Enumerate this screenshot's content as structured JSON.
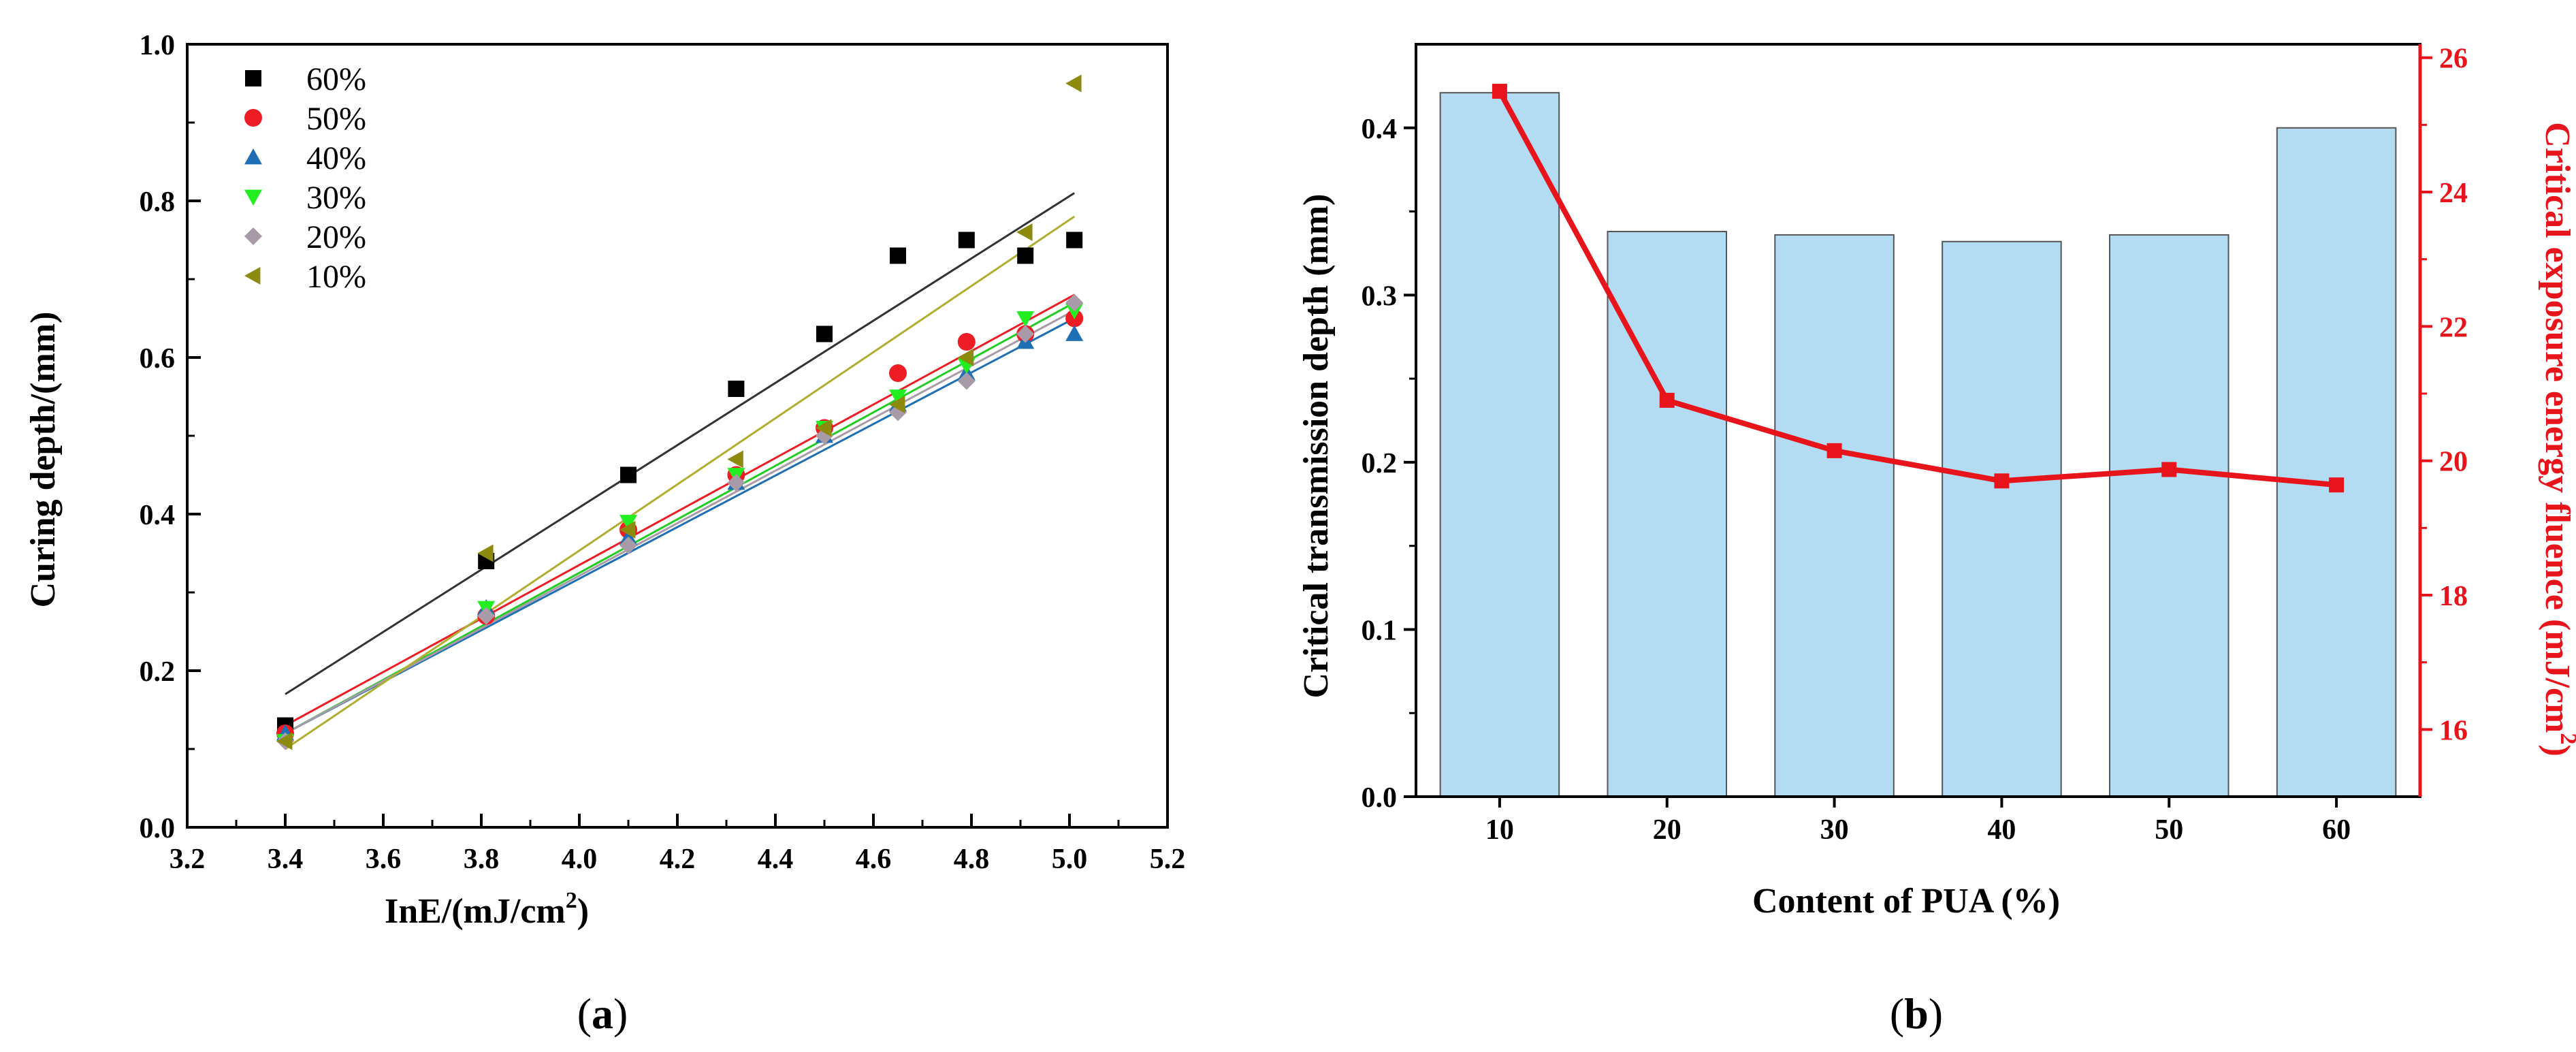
{
  "chart_data": [
    {
      "panel": "a",
      "panel_label": "(a)",
      "type": "scatter",
      "xlabel": "InE/(mJ/cm",
      "xlabel_superscript": "2",
      "xlabel_close": ")",
      "ylabel": "Curing depth/(mm)",
      "xlim": [
        3.2,
        5.2
      ],
      "ylim": [
        0.0,
        1.0
      ],
      "xticks": [
        3.2,
        3.4,
        3.6,
        3.8,
        4.0,
        4.2,
        4.4,
        4.6,
        4.8,
        5.0,
        5.2
      ],
      "xtick_labels": [
        "3.2",
        "3.4",
        "3.6",
        "3.8",
        "4.0",
        "4.2",
        "4.4",
        "4.6",
        "4.8",
        "5.0",
        "5.2"
      ],
      "yticks": [
        0.0,
        0.2,
        0.4,
        0.6,
        0.8,
        1.0
      ],
      "ytick_labels": [
        "0.0",
        "0.2",
        "0.4",
        "0.6",
        "0.8",
        "1.0"
      ],
      "legend_position": "top-left",
      "x": [
        3.4,
        3.81,
        4.1,
        4.32,
        4.5,
        4.65,
        4.79,
        4.91,
        5.01
      ],
      "series": [
        {
          "name": "60%",
          "marker": "square",
          "color": "#000000",
          "line_color": "#333333",
          "values": [
            0.13,
            0.34,
            0.45,
            0.56,
            0.63,
            0.73,
            0.75,
            0.73,
            0.75
          ],
          "fit": [
            0.17,
            0.81
          ]
        },
        {
          "name": "50%",
          "marker": "circle",
          "color": "#ee1c24",
          "line_color": "#ee1c24",
          "values": [
            0.12,
            0.27,
            0.38,
            0.45,
            0.51,
            0.58,
            0.62,
            0.63,
            0.65
          ],
          "fit": [
            0.13,
            0.68
          ]
        },
        {
          "name": "40%",
          "marker": "triangle-up",
          "color": "#1f6fb4",
          "line_color": "#1f6fb4",
          "values": [
            0.12,
            0.28,
            0.37,
            0.44,
            0.5,
            0.54,
            0.58,
            0.62,
            0.63
          ],
          "fit": [
            0.12,
            0.65
          ]
        },
        {
          "name": "30%",
          "marker": "triangle-down",
          "color": "#22ee22",
          "line_color": "#22cc22",
          "values": [
            0.11,
            0.28,
            0.39,
            0.45,
            0.51,
            0.55,
            0.59,
            0.65,
            0.66
          ],
          "fit": [
            0.12,
            0.67
          ]
        },
        {
          "name": "20%",
          "marker": "diamond",
          "color": "#a99aa8",
          "line_color": "#a99aa8",
          "values": [
            0.11,
            0.27,
            0.36,
            0.44,
            0.5,
            0.53,
            0.57,
            0.63,
            0.67
          ],
          "fit": [
            0.12,
            0.66
          ]
        },
        {
          "name": "10%",
          "marker": "triangle-left",
          "color": "#8d8a10",
          "line_color": "#b0ad30",
          "values": [
            0.11,
            0.35,
            0.38,
            0.47,
            0.51,
            0.54,
            0.6,
            0.76,
            0.95
          ],
          "fit": [
            0.1,
            0.78
          ]
        }
      ]
    },
    {
      "panel": "b",
      "panel_label": "(b)",
      "type": "bar+line",
      "xlabel": "Content of PUA (%)",
      "ylabel_left": "Critical transmission depth (mm)",
      "ylabel_right": "Critical exposure energy fluence (mJ/cm",
      "ylabel_right_superscript": "2",
      "ylabel_right_close": ")",
      "categories": [
        "10",
        "20",
        "30",
        "40",
        "50",
        "60"
      ],
      "bar_series": {
        "name": "Critical transmission depth (mm)",
        "color": "#b3dcf3",
        "values": [
          0.421,
          0.338,
          0.336,
          0.332,
          0.336,
          0.4
        ]
      },
      "line_series": {
        "name": "Critical exposure energy fluence (mJ/cm2)",
        "color": "#e8141c",
        "values": [
          25.5,
          20.9,
          20.15,
          19.7,
          19.87,
          19.64
        ]
      },
      "ylim_left": [
        0.0,
        0.45
      ],
      "yticks_left": [
        0.0,
        0.1,
        0.2,
        0.3,
        0.4
      ],
      "ytick_labels_left": [
        "0.0",
        "0.1",
        "0.2",
        "0.3",
        "0.4"
      ],
      "ylim_right": [
        15.0,
        26.2
      ],
      "yticks_right": [
        16,
        18,
        20,
        22,
        24,
        26
      ],
      "ytick_labels_right": [
        "16",
        "18",
        "20",
        "22",
        "24",
        "26"
      ]
    }
  ]
}
